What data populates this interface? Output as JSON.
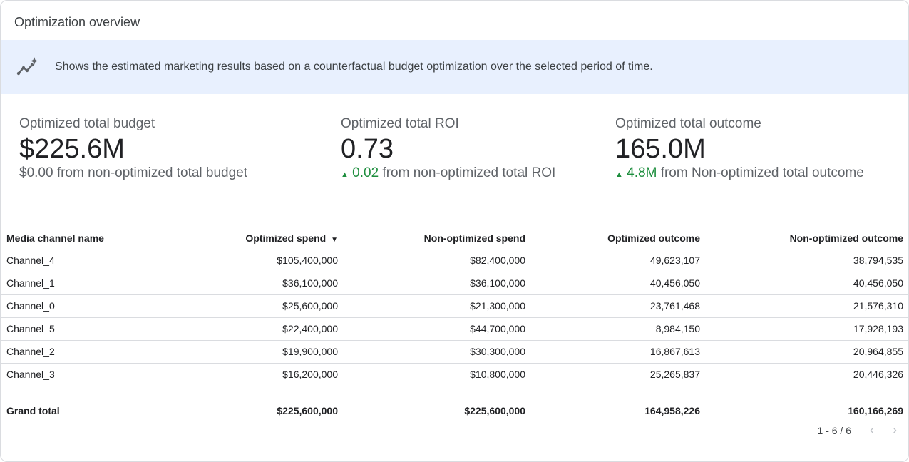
{
  "title": "Optimization overview",
  "banner": {
    "icon": "insights-sparkle-icon",
    "text": "Shows the estimated marketing results based on a counterfactual budget optimization over the selected period of time."
  },
  "kpis": [
    {
      "label": "Optimized total budget",
      "value": "$225.6M",
      "delta": "",
      "delta_text": "$0.00 from non-optimized total budget"
    },
    {
      "label": "Optimized total ROI",
      "value": "0.73",
      "delta": "0.02",
      "delta_text": " from non-optimized total ROI"
    },
    {
      "label": "Optimized total outcome",
      "value": "165.0M",
      "delta": "4.8M",
      "delta_text": " from Non-optimized total outcome"
    }
  ],
  "colors": {
    "positive": "#1e8e3e",
    "banner_bg": "#e8f0fe"
  },
  "table": {
    "headers": [
      "Media channel name",
      "Optimized spend",
      "Non-optimized spend",
      "Optimized outcome",
      "Non-optimized outcome"
    ],
    "sort_icon": "sort-descending-icon",
    "rows": [
      [
        "Channel_4",
        "$105,400,000",
        "$82,400,000",
        "49,623,107",
        "38,794,535"
      ],
      [
        "Channel_1",
        "$36,100,000",
        "$36,100,000",
        "40,456,050",
        "40,456,050"
      ],
      [
        "Channel_0",
        "$25,600,000",
        "$21,300,000",
        "23,761,468",
        "21,576,310"
      ],
      [
        "Channel_5",
        "$22,400,000",
        "$44,700,000",
        "8,984,150",
        "17,928,193"
      ],
      [
        "Channel_2",
        "$19,900,000",
        "$30,300,000",
        "16,867,613",
        "20,964,855"
      ],
      [
        "Channel_3",
        "$16,200,000",
        "$10,800,000",
        "25,265,837",
        "20,446,326"
      ]
    ],
    "total": [
      "Grand total",
      "$225,600,000",
      "$225,600,000",
      "164,958,226",
      "160,166,269"
    ]
  },
  "pagination": {
    "text": "1 - 6 / 6"
  }
}
